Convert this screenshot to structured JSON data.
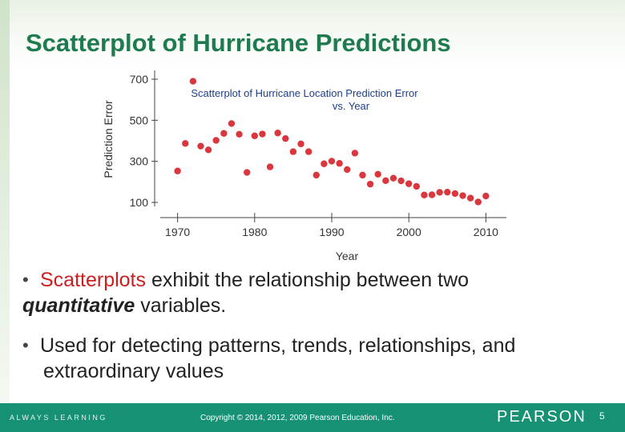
{
  "slide": {
    "title": "Scatterplot of Hurricane Predictions",
    "bullets": [
      {
        "highlight": "Scatterplots",
        "rest": " exhibit the relationship between two",
        "emph": "quantitative",
        "end": " variables."
      },
      {
        "line1": "Used for detecting patterns, trends, relationships, and",
        "line2": "extraordinary values"
      }
    ],
    "bullet_marker": "•"
  },
  "footer": {
    "left": "ALWAYS LEARNING",
    "copyright": "Copyright © 2014, 2012, 2009 Pearson Education, Inc.",
    "logo": "PEARSON",
    "page": "5"
  },
  "colors": {
    "title": "#1e7b4f",
    "point": "#d9363e",
    "highlight": "#cc1f1f",
    "footer": "#169174"
  },
  "chart_data": {
    "type": "scatter",
    "title": "Scatterplot of Hurricane Location Prediction Error",
    "subtitle": "vs. Year",
    "xlabel": "Year",
    "ylabel": "Prediction Error",
    "xticks": [
      1970,
      1980,
      1990,
      2000,
      2010
    ],
    "yticks": [
      100,
      300,
      500,
      700
    ],
    "xlim": [
      1969,
      2011
    ],
    "ylim": [
      100,
      700
    ],
    "grid": false,
    "x": [
      1970,
      1971,
      1972,
      1973,
      1974,
      1975,
      1976,
      1977,
      1978,
      1979,
      1980,
      1981,
      1982,
      1983,
      1984,
      1985,
      1986,
      1987,
      1988,
      1989,
      1990,
      1991,
      1992,
      1993,
      1994,
      1995,
      1996,
      1997,
      1998,
      1999,
      2000,
      2001,
      2002,
      2003,
      2004,
      2005,
      2006,
      2007,
      2008,
      2009,
      2010
    ],
    "y": [
      253,
      387,
      690,
      374,
      356,
      402,
      436,
      484,
      432,
      246,
      424,
      433,
      273,
      438,
      411,
      347,
      385,
      347,
      233,
      288,
      301,
      290,
      260,
      340,
      233,
      189,
      237,
      206,
      218,
      205,
      191,
      178,
      136,
      137,
      149,
      150,
      143,
      133,
      121,
      102,
      131
    ]
  }
}
